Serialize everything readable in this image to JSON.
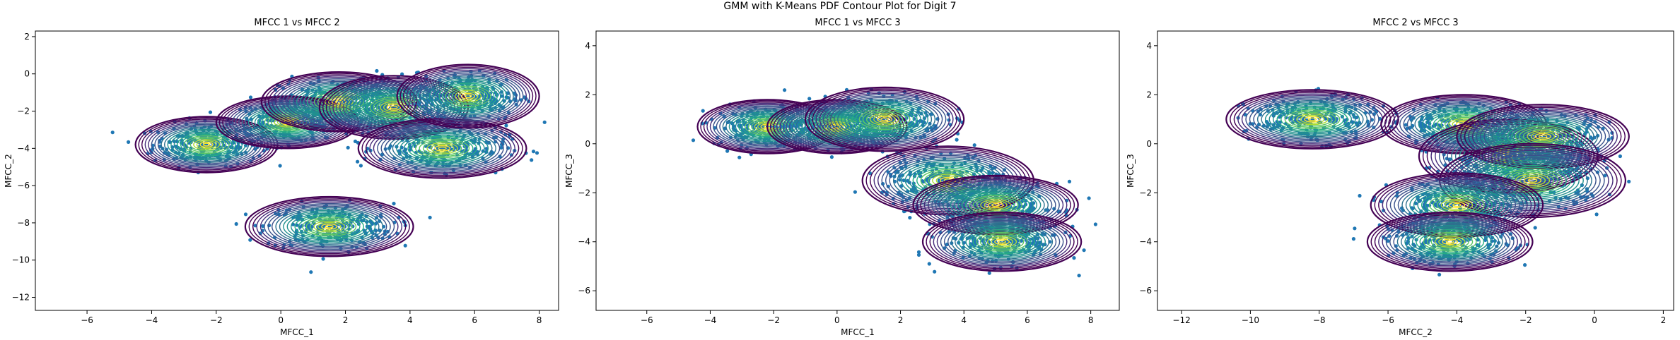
{
  "figure": {
    "suptitle": "GMM with K-Means PDF Contour Plot for Digit 7"
  },
  "colors": {
    "points": "#1f77b4",
    "contour_low": "#440154",
    "contour_high": "#fde725"
  },
  "chart_data": [
    {
      "type": "scatter",
      "title": "MFCC 1 vs MFCC 2",
      "xlabel": "MFCC_1",
      "ylabel": "MFCC_2",
      "xlim": [
        -7.6,
        8.6
      ],
      "ylim": [
        -12.7,
        2.3
      ],
      "xticks": [
        -6,
        -4,
        -2,
        0,
        2,
        4,
        6,
        8
      ],
      "yticks": [
        -12,
        -10,
        -8,
        -6,
        -4,
        -2,
        0,
        2
      ],
      "components": [
        {
          "mean": [
            -2.3,
            -3.8
          ],
          "spread": [
            2.2,
            1.5
          ]
        },
        {
          "mean": [
            0.2,
            -2.6
          ],
          "spread": [
            2.2,
            1.4
          ]
        },
        {
          "mean": [
            1.5,
            -8.2
          ],
          "spread": [
            2.6,
            1.6
          ]
        },
        {
          "mean": [
            1.8,
            -1.5
          ],
          "spread": [
            2.4,
            1.6
          ]
        },
        {
          "mean": [
            3.5,
            -1.8
          ],
          "spread": [
            2.3,
            1.7
          ]
        },
        {
          "mean": [
            5.0,
            -4.0
          ],
          "spread": [
            2.6,
            1.6
          ]
        },
        {
          "mean": [
            5.8,
            -1.2
          ],
          "spread": [
            2.2,
            1.7
          ]
        }
      ]
    },
    {
      "type": "scatter",
      "title": "MFCC 1 vs MFCC 3",
      "xlabel": "MFCC_1",
      "ylabel": "MFCC_3",
      "xlim": [
        -7.6,
        8.9
      ],
      "ylim": [
        -6.8,
        4.6
      ],
      "xticks": [
        -6,
        -4,
        -2,
        0,
        2,
        4,
        6,
        8
      ],
      "yticks": [
        -6,
        -4,
        -2,
        0,
        2,
        4
      ],
      "components": [
        {
          "mean": [
            -2.2,
            0.7
          ],
          "spread": [
            2.2,
            1.1
          ]
        },
        {
          "mean": [
            0.0,
            0.7
          ],
          "spread": [
            2.2,
            1.1
          ]
        },
        {
          "mean": [
            1.5,
            1.0
          ],
          "spread": [
            2.5,
            1.3
          ]
        },
        {
          "mean": [
            3.5,
            -1.5
          ],
          "spread": [
            2.7,
            1.4
          ]
        },
        {
          "mean": [
            5.0,
            -2.5
          ],
          "spread": [
            2.6,
            1.2
          ]
        },
        {
          "mean": [
            5.2,
            -4.0
          ],
          "spread": [
            2.5,
            1.2
          ]
        }
      ]
    },
    {
      "type": "scatter",
      "title": "MFCC 2 vs MFCC 3",
      "xlabel": "MFCC_2",
      "ylabel": "MFCC_3",
      "xlim": [
        -12.7,
        2.3
      ],
      "ylim": [
        -6.8,
        4.6
      ],
      "xticks": [
        -12,
        -10,
        -8,
        -6,
        -4,
        -2,
        0,
        2
      ],
      "yticks": [
        -6,
        -4,
        -2,
        0,
        2,
        4
      ],
      "components": [
        {
          "mean": [
            -8.2,
            1.0
          ],
          "spread": [
            2.5,
            1.2
          ]
        },
        {
          "mean": [
            -3.8,
            0.8
          ],
          "spread": [
            2.4,
            1.2
          ]
        },
        {
          "mean": [
            -2.5,
            -0.5
          ],
          "spread": [
            2.6,
            1.5
          ]
        },
        {
          "mean": [
            -1.5,
            0.3
          ],
          "spread": [
            2.5,
            1.3
          ]
        },
        {
          "mean": [
            -1.8,
            -1.5
          ],
          "spread": [
            2.7,
            1.5
          ]
        },
        {
          "mean": [
            -4.0,
            -2.5
          ],
          "spread": [
            2.5,
            1.3
          ]
        },
        {
          "mean": [
            -4.2,
            -4.0
          ],
          "spread": [
            2.4,
            1.2
          ]
        }
      ]
    }
  ]
}
